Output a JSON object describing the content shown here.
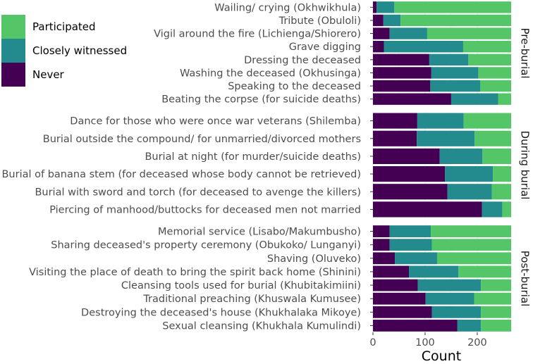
{
  "chart_data": {
    "type": "bar",
    "orientation": "horizontal",
    "stacked": true,
    "xlabel": "Count",
    "ylabel": "",
    "xlim": [
      0,
      265
    ],
    "xticks": [
      0,
      100,
      200
    ],
    "legend": {
      "placement": "top-left",
      "entries": [
        {
          "key": "participated",
          "label": "Participated",
          "color": "#55c667"
        },
        {
          "key": "witnessed",
          "label": "Closely witnessed",
          "color": "#238a8d"
        },
        {
          "key": "never",
          "label": "Never",
          "color": "#440154"
        }
      ]
    },
    "segment_order": [
      "never",
      "witnessed",
      "participated"
    ],
    "facets": [
      {
        "name": "Pre-burial",
        "rows": [
          {
            "label": "Wailing/ crying (Okhwikhula)",
            "never": 7,
            "witnessed": 34,
            "participated": 224
          },
          {
            "label": "Tribute (Obuloli)",
            "never": 20,
            "witnessed": 33,
            "participated": 212
          },
          {
            "label": "Vigil around the fire (Lichienga/Shiorero)",
            "never": 32,
            "witnessed": 72,
            "participated": 161
          },
          {
            "label": "Grave digging",
            "never": 21,
            "witnessed": 152,
            "participated": 92
          },
          {
            "label": "Dressing the deceased",
            "never": 108,
            "witnessed": 75,
            "participated": 82
          },
          {
            "label": "Washing the deceased (Okhusinga)",
            "never": 112,
            "witnessed": 90,
            "participated": 63
          },
          {
            "label": "Speaking to the deceased",
            "never": 110,
            "witnessed": 96,
            "participated": 59
          },
          {
            "label": "Beating the corpse (for suicide deaths)",
            "never": 150,
            "witnessed": 90,
            "participated": 25
          }
        ]
      },
      {
        "name": "During burial",
        "rows": [
          {
            "label": "Dance for those who were once war veterans (Shilemba)",
            "never": 85,
            "witnessed": 89,
            "participated": 91
          },
          {
            "label": "Burial outside the compound/ for unmarried/divorced mothers",
            "never": 84,
            "witnessed": 111,
            "participated": 70
          },
          {
            "label": "Burial at night (for murder/suicide deaths)",
            "never": 128,
            "witnessed": 82,
            "participated": 55
          },
          {
            "label": "Burial of banana stem (for deceased whose body cannot be retrieved)",
            "never": 138,
            "witnessed": 92,
            "participated": 35
          },
          {
            "label": "Burial with sword and torch (for deceased to avenge the killers)",
            "never": 143,
            "witnessed": 85,
            "participated": 37
          },
          {
            "label": "Piercing of manhood/buttocks for deceased men not married",
            "never": 209,
            "witnessed": 39,
            "participated": 17
          }
        ]
      },
      {
        "name": "Post-burial",
        "rows": [
          {
            "label": "Memorial service (Lisabo/Makumbusho)",
            "never": 32,
            "witnessed": 79,
            "participated": 154
          },
          {
            "label": "Sharing deceased's property ceremony (Obukoko/ Lunganyi)",
            "never": 32,
            "witnessed": 81,
            "participated": 152
          },
          {
            "label": "Shaving (Oluveko)",
            "never": 42,
            "witnessed": 81,
            "participated": 142
          },
          {
            "label": "Visiting the place of death to bring the spirit back home (Shinini)",
            "never": 69,
            "witnessed": 95,
            "participated": 101
          },
          {
            "label": "Cleansing tools used for burial (Khubitakimiini)",
            "never": 86,
            "witnessed": 121,
            "participated": 58
          },
          {
            "label": "Traditional preaching (Khuswala Kumusee)",
            "never": 101,
            "witnessed": 93,
            "participated": 71
          },
          {
            "label": "Destroying the deceased's house (Khukhalaka Mikoye)",
            "never": 113,
            "witnessed": 94,
            "participated": 58
          },
          {
            "label": "Sexual cleansing (Khukhala Kumulindi)",
            "never": 162,
            "witnessed": 45,
            "participated": 58
          }
        ]
      }
    ]
  }
}
